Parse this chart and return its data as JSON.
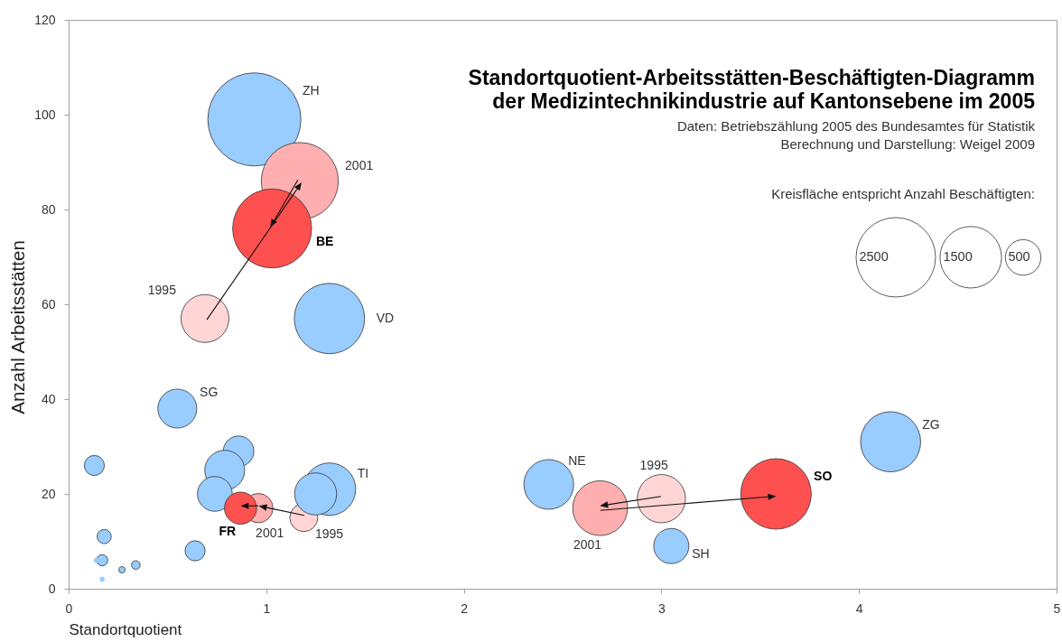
{
  "chart_data": {
    "type": "bubble",
    "title": "Standortquotient-Arbeitsstätten-Beschäftigten-Diagramm\nder Medizintechnikindustrie auf Kantonsebene im 2005",
    "xlabel": "Standortquotient",
    "ylabel": "Anzahl Arbeitsstätten",
    "legend_title": "Kreisfläche entspricht Anzahl Beschäftigten:",
    "size_legend": [
      2500,
      1500,
      500
    ],
    "xlim": [
      0,
      5
    ],
    "xticks": [
      0,
      1,
      2,
      3,
      4,
      5
    ],
    "ylim": [
      0,
      120
    ],
    "yticks": [
      0,
      20,
      40,
      60,
      80,
      100,
      120
    ],
    "series": [
      {
        "color": "#ffd5d5",
        "x": [
          0.69,
          1.19,
          3.0
        ],
        "values": [
          57,
          15,
          19
        ],
        "sizes": [
          910,
          310,
          920
        ]
      },
      {
        "color": "#99ccff",
        "x": [
          0.94,
          1.32,
          0.55,
          1.32,
          1.25,
          0.86,
          0.79,
          0.74,
          0.13,
          0.64,
          0.18,
          0.17,
          0.34,
          0.27,
          2.43,
          3.05,
          4.16
        ],
        "values": [
          99,
          57,
          38,
          21,
          20,
          29,
          25,
          20,
          26,
          8,
          11,
          6,
          5,
          4,
          22,
          9,
          31
        ],
        "sizes": [
          3430,
          1960,
          600,
          1090,
          700,
          370,
          630,
          480,
          160,
          160,
          80,
          50,
          30,
          16,
          980,
          490,
          1430
        ]
      },
      {
        "color": "#ffafaf",
        "x": [
          1.17,
          0.96,
          2.69
        ],
        "values": [
          86,
          17,
          17
        ],
        "sizes": [
          2350,
          340,
          1190
        ]
      },
      {
        "color": "#ff5050",
        "x": [
          1.03,
          0.87,
          3.58
        ],
        "values": [
          76,
          17,
          20
        ],
        "sizes": [
          2470,
          410,
          1970
        ]
      },
      {
        "type": "scatter",
        "color": "#99ccff",
        "x": [
          0.14,
          0.17
        ],
        "values": [
          6,
          2
        ]
      }
    ],
    "annotations": [
      "Daten: Betriebszählung 2005 des Bundesamtes für Statistik",
      "Berechnung und Darstellung: Weigel 2009",
      "ZH",
      "2001",
      "BE",
      "1995",
      "VD",
      "SG",
      "TI",
      "FR",
      "2001",
      "1995",
      "NE",
      "2001",
      "1995",
      "SO",
      "ZG",
      "SH"
    ]
  }
}
